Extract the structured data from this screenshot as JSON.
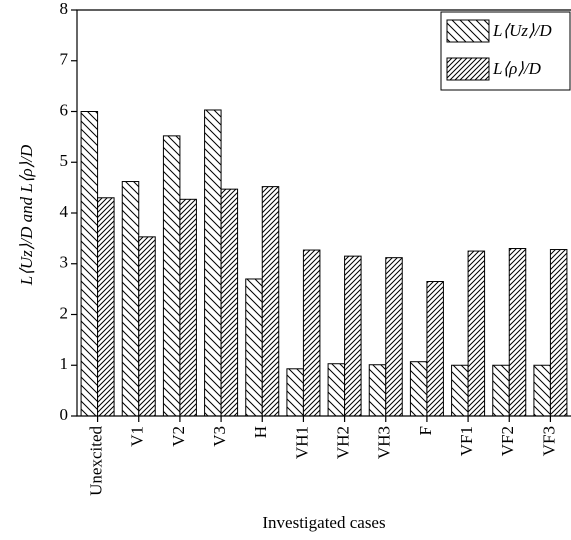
{
  "chart_data": {
    "type": "bar",
    "x_label": "Investigated cases",
    "y_label": "L⟨Uz⟩/D and L⟨ρ⟩/D",
    "categories": [
      "Unexcited",
      "V1",
      "V2",
      "V3",
      "H",
      "VH1",
      "VH2",
      "VH3",
      "F",
      "VF1",
      "VF2",
      "VF3"
    ],
    "series": [
      {
        "name": "L⟨Uz⟩/D",
        "color": "#000000",
        "hatch": "backslash",
        "values": [
          6.0,
          4.62,
          5.52,
          6.03,
          2.7,
          0.93,
          1.03,
          1.01,
          1.07,
          1.0,
          1.0,
          1.0
        ]
      },
      {
        "name": "L⟨ρ⟩/D",
        "color": "#000000",
        "hatch": "slash",
        "values": [
          4.3,
          3.53,
          4.27,
          4.47,
          4.52,
          3.27,
          3.15,
          3.12,
          2.65,
          3.25,
          3.3,
          3.28
        ]
      }
    ],
    "ylim": [
      0,
      8
    ],
    "yticks": [
      0,
      1,
      2,
      3,
      4,
      5,
      6,
      7,
      8
    ],
    "legend": "upper right"
  }
}
